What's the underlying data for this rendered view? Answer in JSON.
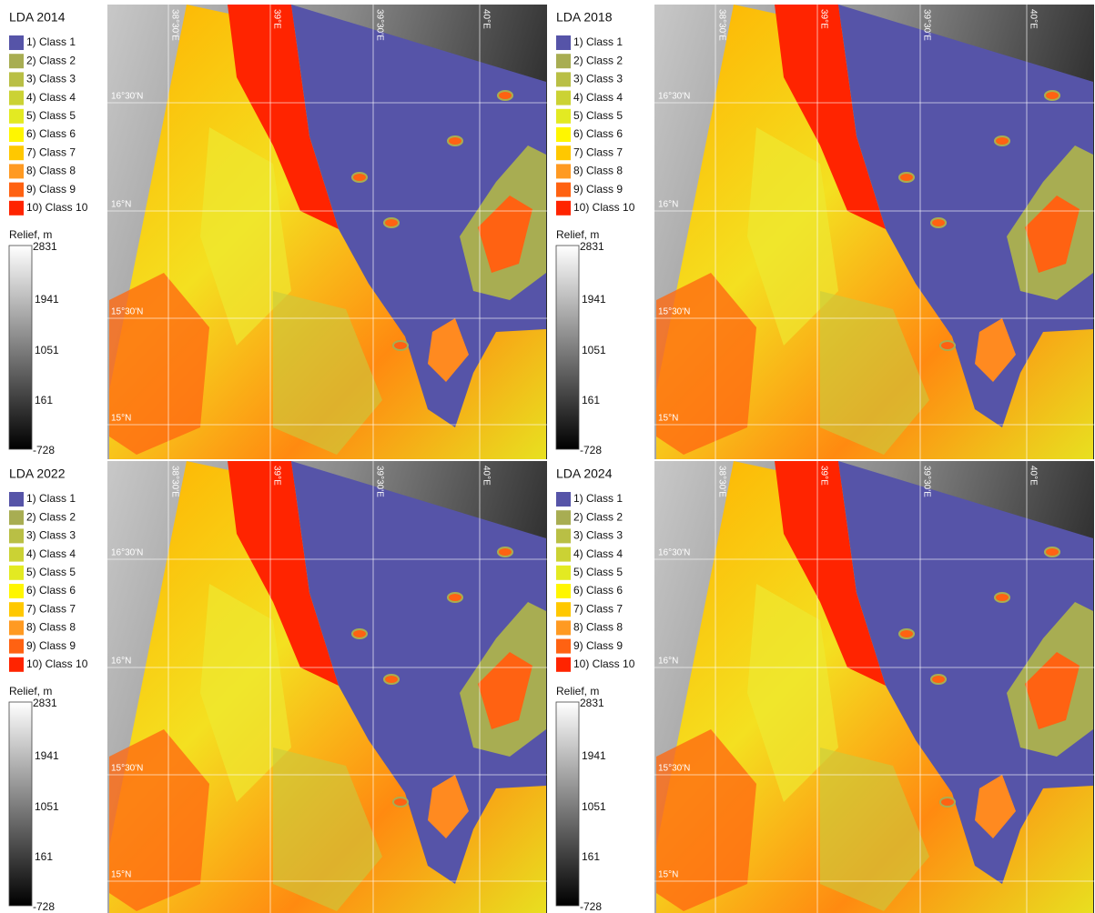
{
  "panels": [
    {
      "title": "LDA 2014",
      "legend": {
        "classes": [
          {
            "label": "1) Class 1",
            "color": "#5654a8"
          },
          {
            "label": "2) Class 2",
            "color": "#a8ad52"
          },
          {
            "label": "3) Class 3",
            "color": "#b9bf45"
          },
          {
            "label": "4) Class 4",
            "color": "#cbd234"
          },
          {
            "label": "5) Class 5",
            "color": "#e3ea22"
          },
          {
            "label": "6) Class 6",
            "color": "#fff600"
          },
          {
            "label": "7) Class 7",
            "color": "#ffc800"
          },
          {
            "label": "8) Class 8",
            "color": "#ff9a22"
          },
          {
            "label": "9) Class 9",
            "color": "#ff6212"
          },
          {
            "label": "10) Class 10",
            "color": "#ff2400"
          }
        ],
        "relief_title": "Relief, m",
        "relief_ticks": [
          2831,
          1941,
          1051,
          161,
          -728
        ]
      }
    },
    {
      "title": "LDA 2018",
      "legend": {
        "classes": [
          {
            "label": "1) Class 1",
            "color": "#5654a8"
          },
          {
            "label": "2) Class 2",
            "color": "#a8ad52"
          },
          {
            "label": "3) Class 3",
            "color": "#b9bf45"
          },
          {
            "label": "4) Class 4",
            "color": "#cbd234"
          },
          {
            "label": "5) Class 5",
            "color": "#e3ea22"
          },
          {
            "label": "6) Class 6",
            "color": "#fff600"
          },
          {
            "label": "7) Class 7",
            "color": "#ffc800"
          },
          {
            "label": "8) Class 8",
            "color": "#ff9a22"
          },
          {
            "label": "9) Class 9",
            "color": "#ff6212"
          },
          {
            "label": "10) Class 10",
            "color": "#ff2400"
          }
        ],
        "relief_title": "Relief, m",
        "relief_ticks": [
          2831,
          1941,
          1051,
          161,
          -728
        ]
      }
    },
    {
      "title": "LDA 2022",
      "legend": {
        "classes": [
          {
            "label": "1) Class 1",
            "color": "#5654a8"
          },
          {
            "label": "2) Class 2",
            "color": "#a8ad52"
          },
          {
            "label": "3) Class 3",
            "color": "#b9bf45"
          },
          {
            "label": "4) Class 4",
            "color": "#cbd234"
          },
          {
            "label": "5) Class 5",
            "color": "#e3ea22"
          },
          {
            "label": "6) Class 6",
            "color": "#fff600"
          },
          {
            "label": "7) Class 7",
            "color": "#ffc800"
          },
          {
            "label": "8) Class 8",
            "color": "#ff9a22"
          },
          {
            "label": "9) Class 9",
            "color": "#ff6212"
          },
          {
            "label": "10) Class 10",
            "color": "#ff2400"
          }
        ],
        "relief_title": "Relief, m",
        "relief_ticks": [
          2831,
          1941,
          1051,
          161,
          -728
        ]
      }
    },
    {
      "title": "LDA 2024",
      "legend": {
        "classes": [
          {
            "label": "1) Class 1",
            "color": "#5654a8"
          },
          {
            "label": "2) Class 2",
            "color": "#a8ad52"
          },
          {
            "label": "3) Class 3",
            "color": "#b9bf45"
          },
          {
            "label": "4) Class 4",
            "color": "#cbd234"
          },
          {
            "label": "5) Class 5",
            "color": "#e3ea22"
          },
          {
            "label": "6) Class 6",
            "color": "#fff600"
          },
          {
            "label": "7) Class 7",
            "color": "#ffc800"
          },
          {
            "label": "8) Class 8",
            "color": "#ff9a22"
          },
          {
            "label": "9) Class 9",
            "color": "#ff6212"
          },
          {
            "label": "10) Class 10",
            "color": "#ff2400"
          }
        ],
        "relief_title": "Relief, m",
        "relief_ticks": [
          2831,
          1941,
          1051,
          161,
          -728
        ]
      }
    }
  ],
  "map_grid": {
    "longitudes": [
      "38°30'E",
      "39°E",
      "39°30'E",
      "40°E"
    ],
    "latitudes": [
      "16°30'N",
      "16°N",
      "15°30'N",
      "15°N"
    ]
  }
}
